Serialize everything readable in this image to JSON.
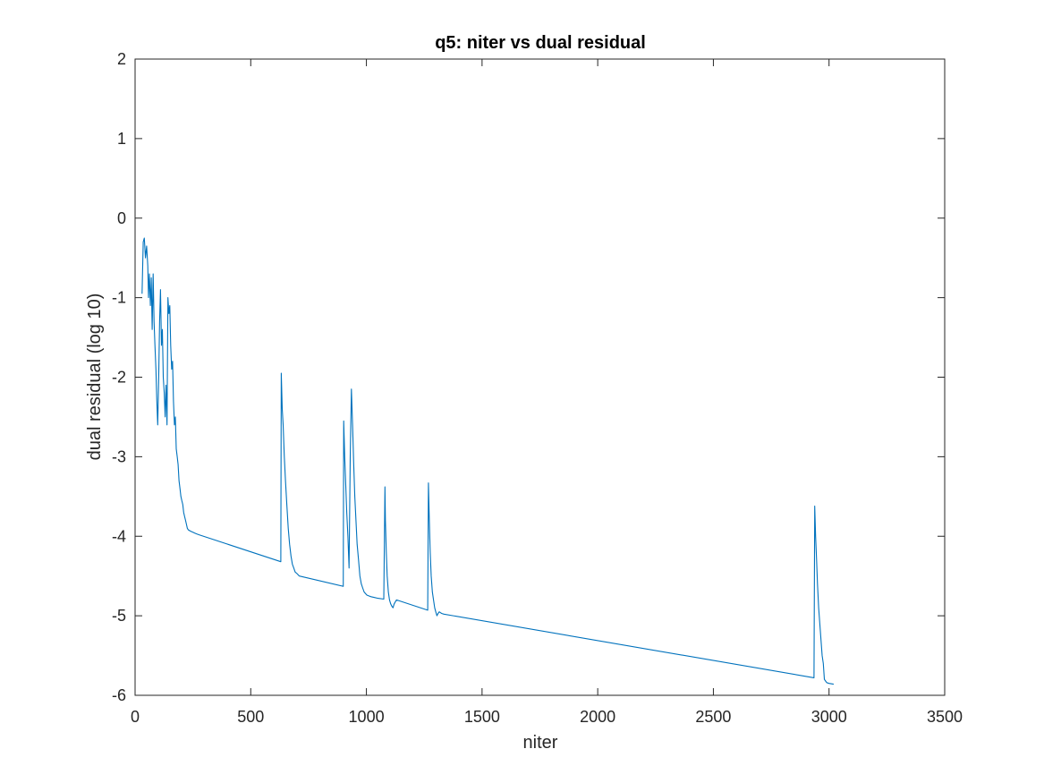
{
  "chart_data": {
    "type": "line",
    "title": "q5: niter vs dual residual",
    "xlabel": "niter",
    "ylabel": "dual residual (log 10)",
    "xlim": [
      0,
      3500
    ],
    "ylim": [
      -6,
      2
    ],
    "xticks": [
      0,
      500,
      1000,
      1500,
      2000,
      2500,
      3000,
      3500
    ],
    "yticks": [
      -6,
      -5,
      -4,
      -3,
      -2,
      -1,
      0,
      1,
      2
    ],
    "xtick_labels": [
      "0",
      "500",
      "1000",
      "1500",
      "2000",
      "2500",
      "3000",
      "3500"
    ],
    "ytick_labels": [
      "-6",
      "-5",
      "-4",
      "-3",
      "-2",
      "-1",
      "0",
      "1",
      "2"
    ],
    "grid": false,
    "box": true,
    "series_color": "#0072BD",
    "series": [
      {
        "x": [
          30,
          35,
          40,
          45,
          50,
          55,
          58,
          62,
          66,
          70,
          74,
          78,
          82,
          86,
          90,
          94,
          98,
          102,
          106,
          110,
          114,
          118,
          122,
          126,
          130,
          134,
          138,
          142,
          146,
          150,
          154,
          158,
          162,
          166,
          170,
          174,
          178,
          182,
          186,
          190,
          194,
          198,
          202,
          206,
          210,
          214,
          218,
          222,
          226,
          230,
          236,
          242,
          250,
          258,
          266,
          275,
          630,
          632,
          636,
          640,
          645,
          650,
          656,
          662,
          668,
          674,
          680,
          686,
          692,
          700,
          710,
          900,
          902,
          906,
          910,
          915,
          920,
          925,
          930,
          935,
          940,
          945,
          950,
          955,
          960,
          966,
          972,
          978,
          984,
          990,
          996,
          1002,
          1010,
          1020,
          1035,
          1050,
          1075,
          1080,
          1082,
          1086,
          1090,
          1095,
          1100,
          1105,
          1110,
          1115,
          1120,
          1130,
          1265,
          1268,
          1272,
          1276,
          1280,
          1285,
          1290,
          1295,
          1300,
          1305,
          1310,
          1315,
          1320,
          1325,
          1335,
          2935,
          2938,
          2942,
          2946,
          2950,
          2955,
          2960,
          2965,
          2970,
          2975,
          2980,
          2985,
          2990,
          3000,
          3020
        ],
        "y": [
          -0.95,
          -0.3,
          -0.25,
          -0.5,
          -0.35,
          -0.6,
          -1.0,
          -0.7,
          -1.1,
          -0.75,
          -1.4,
          -0.7,
          -1.3,
          -1.6,
          -1.9,
          -2.3,
          -2.6,
          -2.0,
          -1.3,
          -0.9,
          -1.6,
          -1.4,
          -2.0,
          -2.2,
          -2.5,
          -2.1,
          -2.6,
          -1.0,
          -1.2,
          -1.1,
          -1.6,
          -1.9,
          -1.8,
          -2.3,
          -2.6,
          -2.5,
          -2.9,
          -3.0,
          -3.1,
          -3.3,
          -3.4,
          -3.5,
          -3.55,
          -3.6,
          -3.7,
          -3.75,
          -3.8,
          -3.85,
          -3.9,
          -3.92,
          -3.93,
          -3.94,
          -3.95,
          -3.96,
          -3.97,
          -3.98,
          -4.32,
          -1.95,
          -2.4,
          -2.6,
          -3.0,
          -3.3,
          -3.6,
          -3.9,
          -4.1,
          -4.25,
          -4.35,
          -4.4,
          -4.45,
          -4.47,
          -4.5,
          -4.63,
          -2.55,
          -3.0,
          -3.3,
          -3.7,
          -4.0,
          -4.4,
          -3.0,
          -2.15,
          -2.6,
          -3.1,
          -3.5,
          -3.8,
          -4.1,
          -4.3,
          -4.5,
          -4.6,
          -4.65,
          -4.7,
          -4.72,
          -4.74,
          -4.75,
          -4.76,
          -4.77,
          -4.78,
          -4.79,
          -3.38,
          -3.8,
          -4.2,
          -4.5,
          -4.7,
          -4.8,
          -4.85,
          -4.88,
          -4.9,
          -4.85,
          -4.8,
          -4.93,
          -3.33,
          -3.8,
          -4.2,
          -4.5,
          -4.7,
          -4.8,
          -4.9,
          -4.95,
          -5.0,
          -4.97,
          -4.95,
          -4.96,
          -4.97,
          -4.98,
          -5.78,
          -3.62,
          -4.0,
          -4.3,
          -4.6,
          -4.9,
          -5.1,
          -5.3,
          -5.5,
          -5.6,
          -5.8,
          -5.82,
          -5.84,
          -5.85,
          -5.86
        ]
      }
    ]
  }
}
